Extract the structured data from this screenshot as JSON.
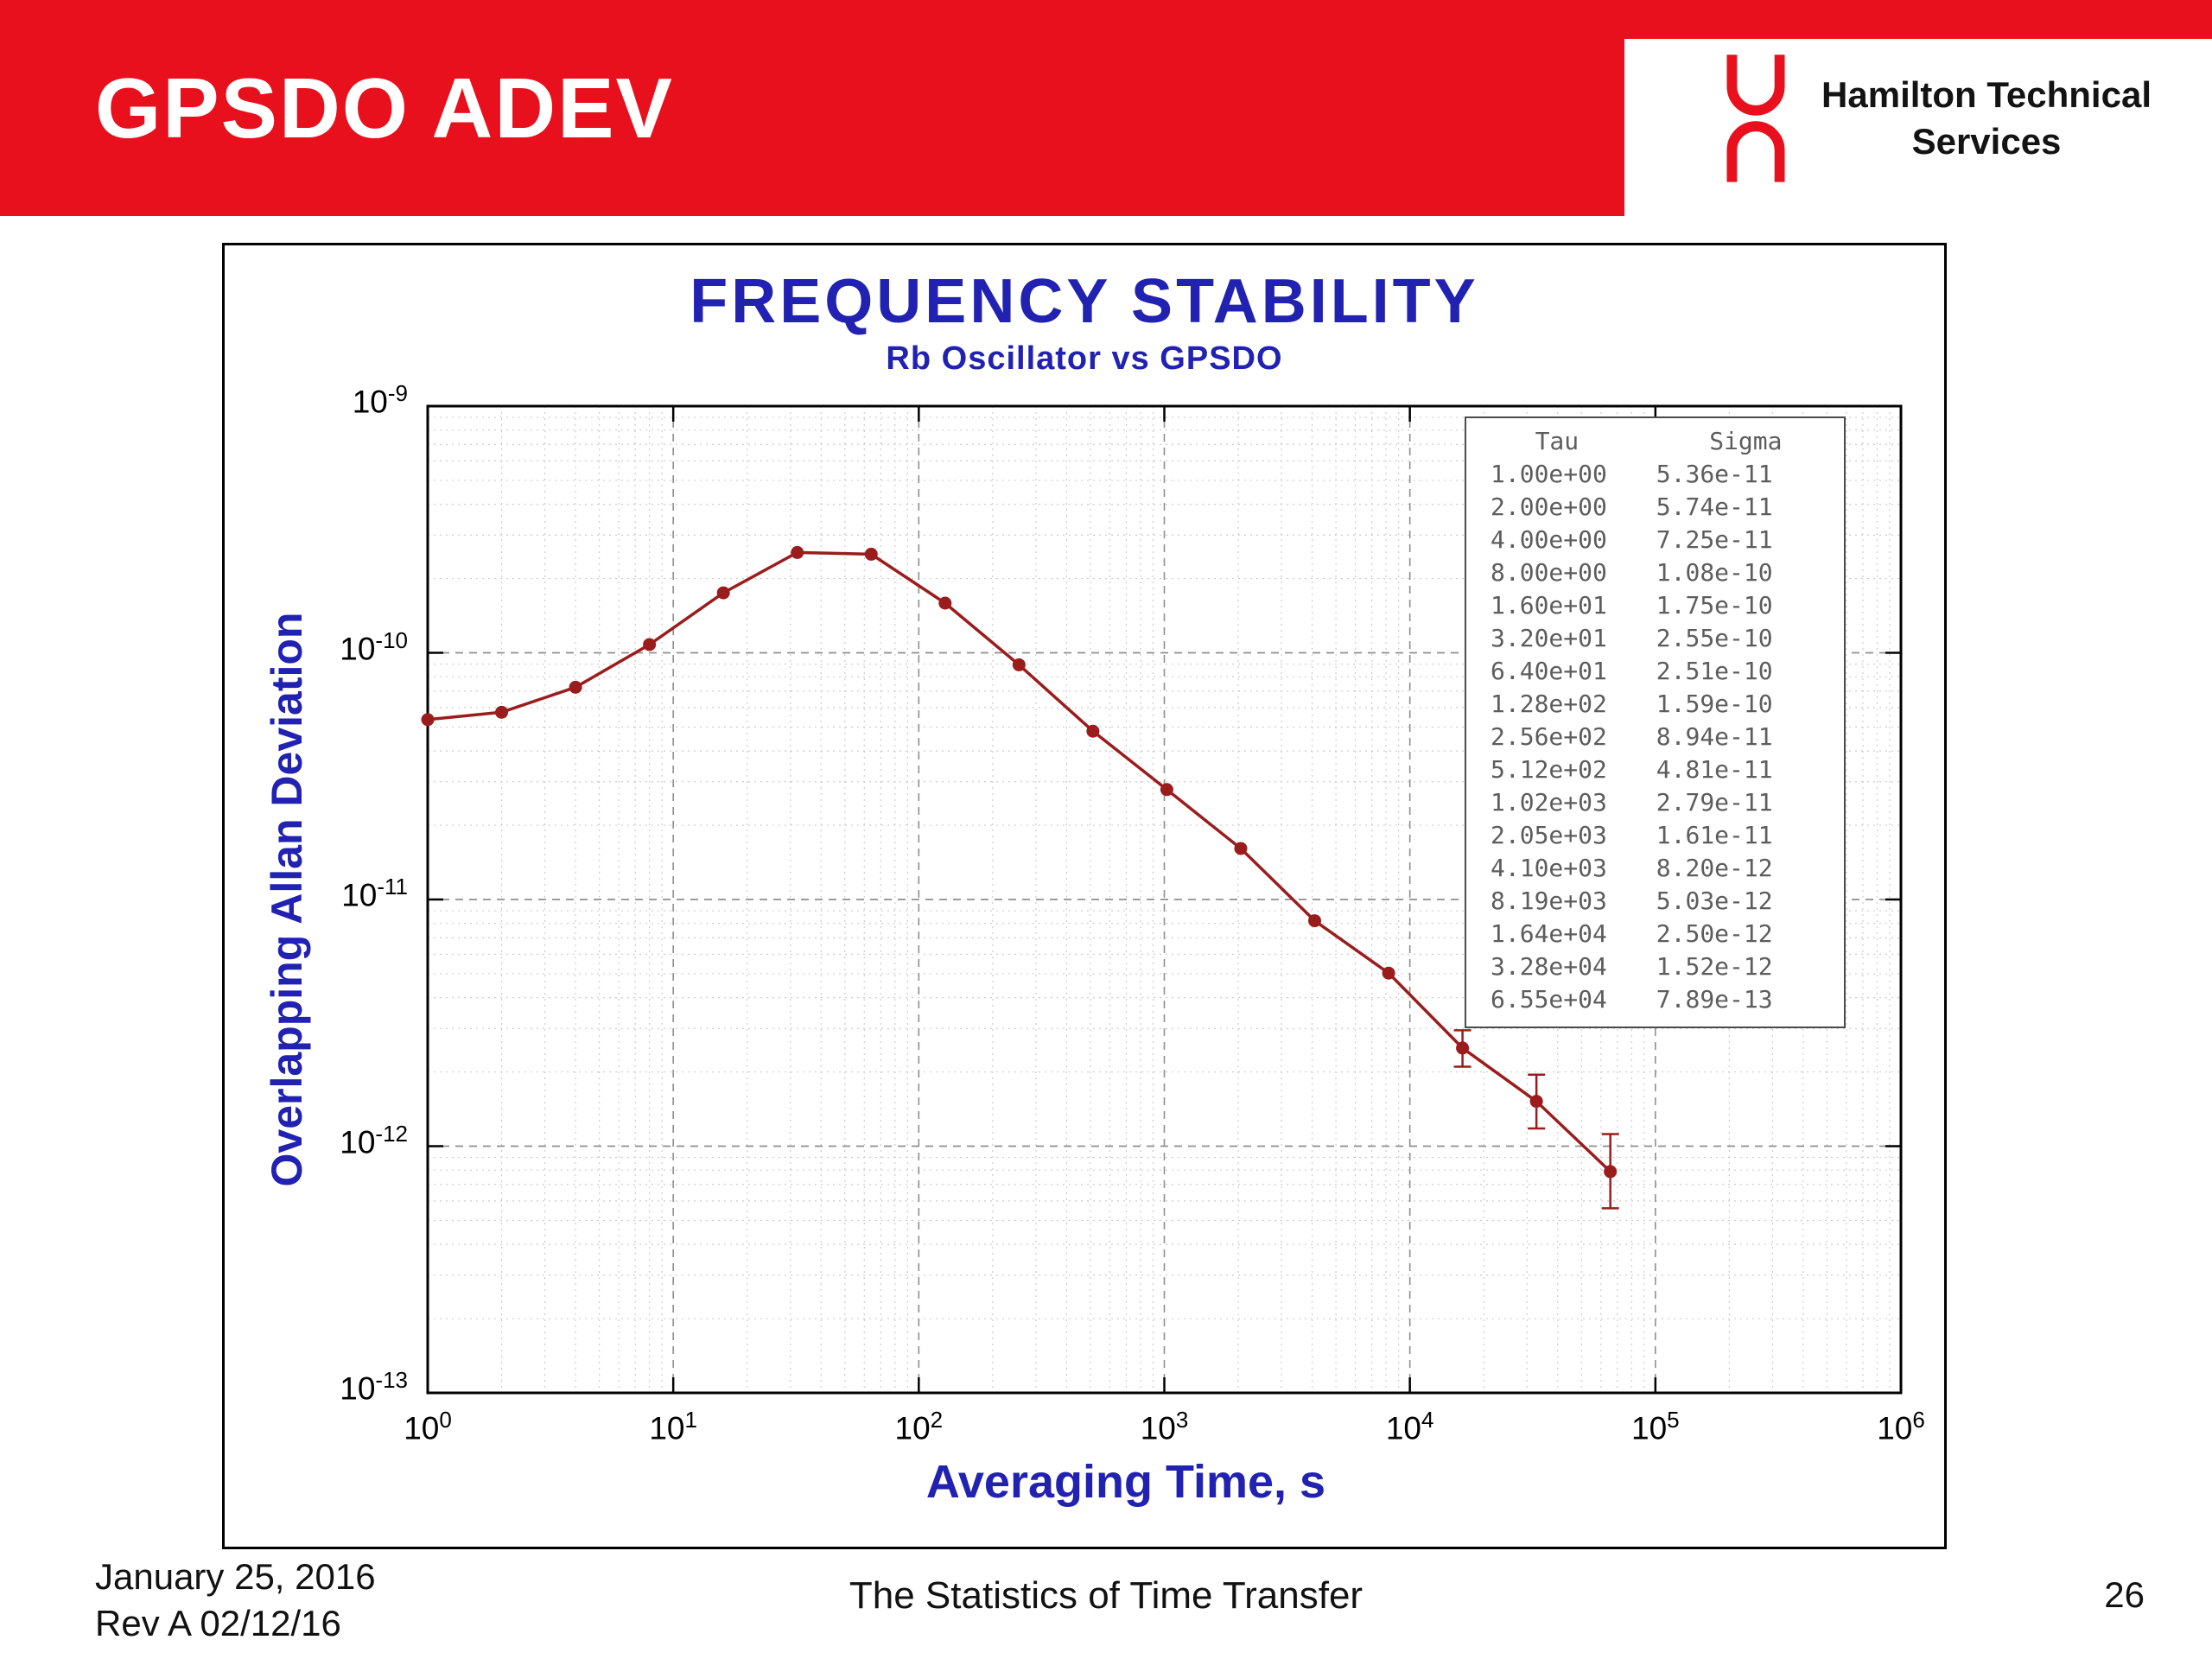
{
  "slide": {
    "title": "GPSDO ADEV",
    "logo_line1": "Hamilton Technical",
    "logo_line2": "Services",
    "footer_date": "January 25, 2016",
    "footer_rev": "Rev A 02/12/16",
    "footer_center": "The Statistics of Time Transfer",
    "page_number": "26",
    "accent_red": "#e8101c",
    "navy_blue": "#2121b2"
  },
  "chart_data": {
    "type": "line",
    "title": "FREQUENCY STABILITY",
    "subtitle": "Rb Oscillator vs GPSDO",
    "xlabel": "Averaging Time, s",
    "ylabel": "Overlapping Allan Deviation",
    "x_scale": "log",
    "y_scale": "log",
    "x_log_range": [
      0,
      6
    ],
    "y_log_range": [
      -13,
      -9
    ],
    "x_tick_exponents": [
      0,
      1,
      2,
      3,
      4,
      5,
      6
    ],
    "y_tick_exponents": [
      -9,
      -10,
      -11,
      -12,
      -13
    ],
    "grid": true,
    "legend_position": "none",
    "line_color": "#9b1c1c",
    "table_headers": [
      "Tau",
      "Sigma"
    ],
    "points": [
      {
        "tau_label": "1.00e+00",
        "sigma_label": "5.36e-11",
        "tau": 1.0,
        "sigma": 5.36e-11
      },
      {
        "tau_label": "2.00e+00",
        "sigma_label": "5.74e-11",
        "tau": 2.0,
        "sigma": 5.74e-11
      },
      {
        "tau_label": "4.00e+00",
        "sigma_label": "7.25e-11",
        "tau": 4.0,
        "sigma": 7.25e-11
      },
      {
        "tau_label": "8.00e+00",
        "sigma_label": "1.08e-10",
        "tau": 8.0,
        "sigma": 1.08e-10
      },
      {
        "tau_label": "1.60e+01",
        "sigma_label": "1.75e-10",
        "tau": 16.0,
        "sigma": 1.75e-10
      },
      {
        "tau_label": "3.20e+01",
        "sigma_label": "2.55e-10",
        "tau": 32.0,
        "sigma": 2.55e-10
      },
      {
        "tau_label": "6.40e+01",
        "sigma_label": "2.51e-10",
        "tau": 64.0,
        "sigma": 2.51e-10
      },
      {
        "tau_label": "1.28e+02",
        "sigma_label": "1.59e-10",
        "tau": 128.0,
        "sigma": 1.59e-10
      },
      {
        "tau_label": "2.56e+02",
        "sigma_label": "8.94e-11",
        "tau": 256.0,
        "sigma": 8.94e-11
      },
      {
        "tau_label": "5.12e+02",
        "sigma_label": "4.81e-11",
        "tau": 512.0,
        "sigma": 4.81e-11
      },
      {
        "tau_label": "1.02e+03",
        "sigma_label": "2.79e-11",
        "tau": 1024.0,
        "sigma": 2.79e-11
      },
      {
        "tau_label": "2.05e+03",
        "sigma_label": "1.61e-11",
        "tau": 2048.0,
        "sigma": 1.61e-11
      },
      {
        "tau_label": "4.10e+03",
        "sigma_label": "8.20e-12",
        "tau": 4096.0,
        "sigma": 8.2e-12
      },
      {
        "tau_label": "8.19e+03",
        "sigma_label": "5.03e-12",
        "tau": 8192.0,
        "sigma": 5.03e-12
      },
      {
        "tau_label": "1.64e+04",
        "sigma_label": "2.50e-12",
        "tau": 16384.0,
        "sigma": 2.5e-12,
        "err": [
          2.1e-12,
          2.95e-12
        ]
      },
      {
        "tau_label": "3.28e+04",
        "sigma_label": "1.52e-12",
        "tau": 32768.0,
        "sigma": 1.52e-12,
        "err": [
          1.18e-12,
          1.95e-12
        ]
      },
      {
        "tau_label": "6.55e+04",
        "sigma_label": "7.89e-13",
        "tau": 65536.0,
        "sigma": 7.89e-13,
        "err": [
          5.6e-13,
          1.12e-12
        ]
      }
    ]
  }
}
